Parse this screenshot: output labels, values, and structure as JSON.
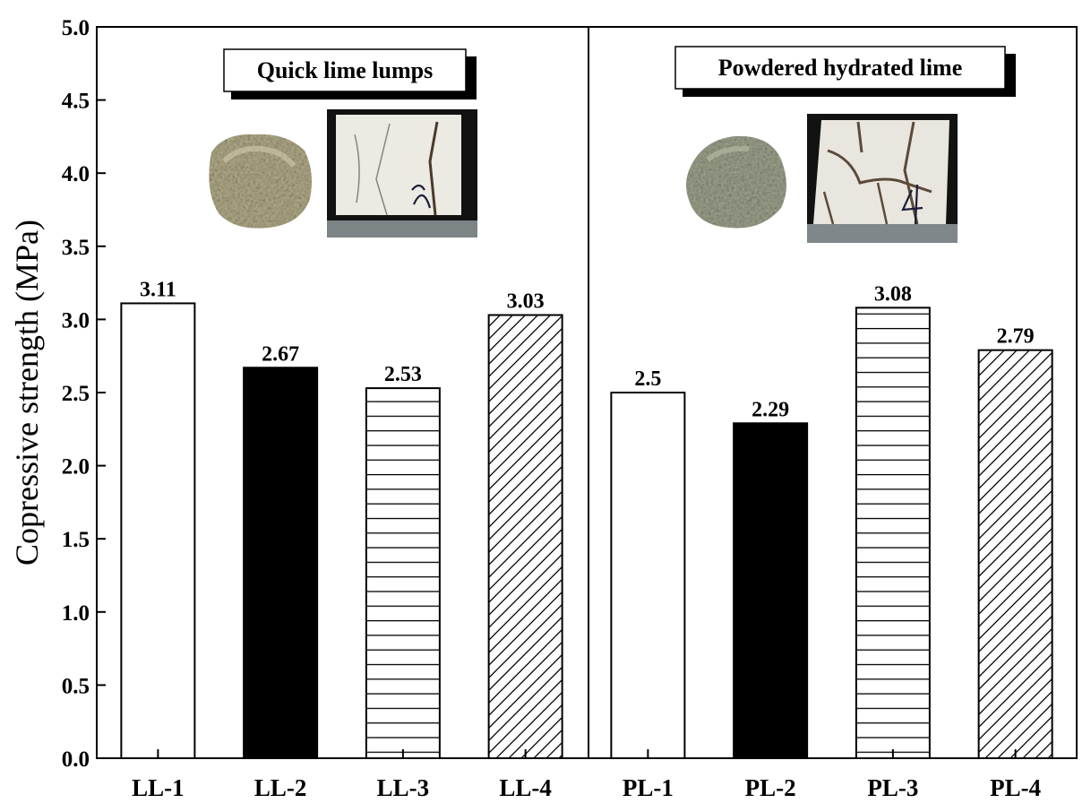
{
  "chart_data": {
    "type": "bar",
    "categories": [
      "LL-1",
      "LL-2",
      "LL-3",
      "LL-4",
      "PL-1",
      "PL-2",
      "PL-3",
      "PL-4"
    ],
    "values": [
      3.11,
      2.67,
      2.53,
      3.03,
      2.5,
      2.29,
      3.08,
      2.79
    ],
    "value_labels": [
      "3.11",
      "2.67",
      "2.53",
      "3.03",
      "2.5",
      "2.29",
      "3.08",
      "2.79"
    ],
    "fills": [
      "empty",
      "solid",
      "horizontal-lines",
      "diagonal-lines",
      "empty",
      "solid",
      "horizontal-lines",
      "diagonal-lines"
    ],
    "groups": [
      {
        "name": "Quick lime lumps",
        "categories": [
          "LL-1",
          "LL-2",
          "LL-3",
          "LL-4"
        ]
      },
      {
        "name": "Powdered hydrated lime",
        "categories": [
          "PL-1",
          "PL-2",
          "PL-3",
          "PL-4"
        ]
      }
    ],
    "ylabel": "Copressive strength (MPa)",
    "xlabel": "",
    "ylim": [
      0,
      5.0
    ],
    "yticks": [
      "0.0",
      "0.5",
      "1.0",
      "1.5",
      "2.0",
      "2.5",
      "3.0",
      "3.5",
      "4.0",
      "4.5",
      "5.0"
    ],
    "grid": false,
    "colors": {
      "bar_edge": "#000000",
      "solid_fill": "#000000",
      "background": "#ffffff"
    }
  }
}
